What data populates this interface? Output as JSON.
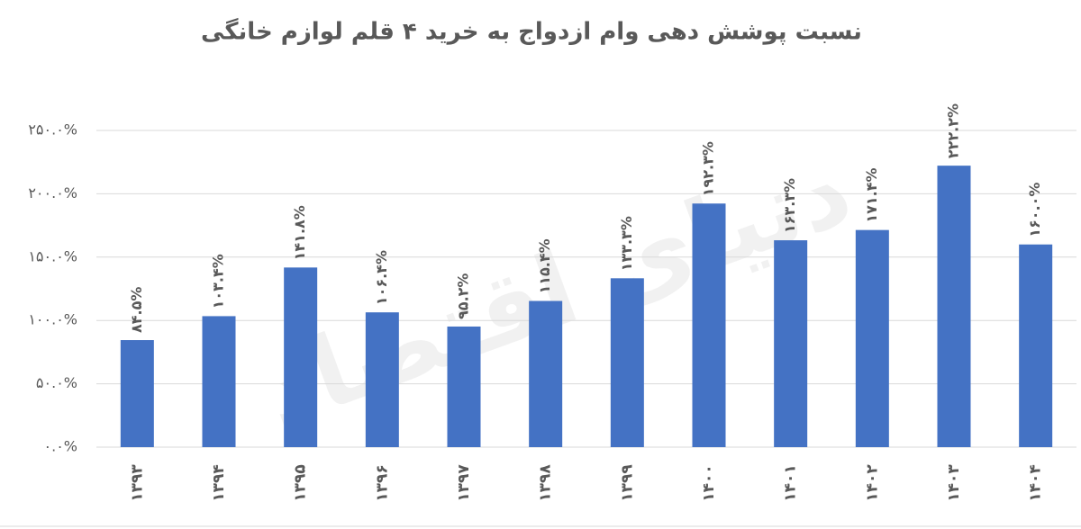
{
  "chart_data": {
    "type": "bar",
    "title": "نسبت پوشش دهی وام ازدواج به خرید ۴ قلم لوازم خانگی",
    "watermark": "دنیای اقتصاد",
    "categories": [
      "۱۳۹۳",
      "۱۳۹۴",
      "۱۳۹۵",
      "۱۳۹۶",
      "۱۳۹۷",
      "۱۳۹۸",
      "۱۳۹۹",
      "۱۴۰۰",
      "۱۴۰۱",
      "۱۴۰۲",
      "۱۴۰۳",
      "۱۴۰۴"
    ],
    "values": [
      84.5,
      103.4,
      141.8,
      106.4,
      95.2,
      115.4,
      133.3,
      192.3,
      163.3,
      171.4,
      222.2,
      160.0
    ],
    "value_labels": [
      "۸۴.۵%",
      "۱۰۳.۴%",
      "۱۴۱.۸%",
      "۱۰۶.۴%",
      "۹۵.۲%",
      "۱۱۵.۴%",
      "۱۳۳.۳%",
      "۱۹۲.۳%",
      "۱۶۳.۳%",
      "۱۷۱.۴%",
      "۲۲۲.۲%",
      "۱۶۰.۰%"
    ],
    "color": "#4472c4",
    "ylim": [
      0,
      250
    ],
    "yticks": [
      {
        "value": 0,
        "label": "۰.۰%"
      },
      {
        "value": 50,
        "label": "۵۰.۰%"
      },
      {
        "value": 100,
        "label": "۱۰۰.۰%"
      },
      {
        "value": 150,
        "label": "۱۵۰.۰%"
      },
      {
        "value": 200,
        "label": "۲۰۰.۰%"
      },
      {
        "value": 250,
        "label": "۲۵۰.۰%"
      }
    ],
    "grid": true
  }
}
